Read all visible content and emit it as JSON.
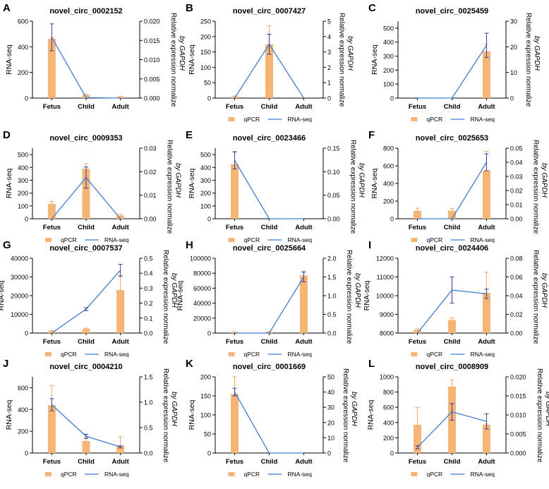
{
  "figure": {
    "colors": {
      "bar": "#F5B675",
      "bar_err": "#F0A860",
      "line": "#3F7DD6",
      "line_err": "#3B3BA8",
      "axis": "#000000"
    },
    "shared_xlabels": [
      "Fetus",
      "Child",
      "Adult"
    ],
    "shared_left_label": "RNA-seq",
    "shared_right_label": [
      "Relative expression normalize",
      "by GAPDH"
    ],
    "legend": [
      "qPCR",
      "RNA-seq"
    ]
  },
  "chart_data": [
    {
      "letter": "A",
      "title": "novel_circ_0002152",
      "type": "bar+line",
      "categories": [
        "Fetus",
        "Child",
        "Adult"
      ],
      "left_axis": {
        "label": "RNA-seq",
        "range": [
          0,
          600
        ],
        "ticks": [
          "0",
          "200",
          "400",
          "600"
        ]
      },
      "right_axis": {
        "label": "Relative expression normalize by GAPDH",
        "range": [
          0,
          0.02
        ],
        "ticks": [
          "0.000",
          "0.005",
          "0.010",
          "0.015",
          "0.020"
        ]
      },
      "series": [
        {
          "name": "qPCR",
          "kind": "bar",
          "axis": "left",
          "values": [
            462,
            25,
            10
          ],
          "errors": [
            10,
            5,
            5
          ]
        },
        {
          "name": "RNA-seq",
          "kind": "line",
          "axis": "right",
          "values": [
            0.0158,
            0.0001,
            0.0
          ],
          "errors": [
            0.0035,
            0,
            0
          ]
        }
      ],
      "legend_shown": false
    },
    {
      "letter": "B",
      "title": "novel_circ_0007427",
      "type": "bar+line",
      "categories": [
        "Fetus",
        "Child",
        "Adult"
      ],
      "left_axis": {
        "label": "RNA-seq",
        "range": [
          0,
          250
        ],
        "ticks": [
          "0",
          "50",
          "100",
          "150",
          "200",
          "250"
        ]
      },
      "right_axis": {
        "label": "Relative expression normalize by GAPDH",
        "range": [
          0,
          5
        ],
        "ticks": [
          "0",
          "1",
          "2",
          "3",
          "4",
          "5"
        ]
      },
      "series": [
        {
          "name": "qPCR",
          "kind": "bar",
          "axis": "left",
          "values": [
            5,
            175,
            0
          ],
          "errors": [
            2,
            60,
            0
          ]
        },
        {
          "name": "RNA-seq",
          "kind": "line",
          "axis": "right",
          "values": [
            0.0,
            3.5,
            0.0
          ],
          "errors": [
            0,
            0.65,
            0
          ]
        }
      ],
      "legend_shown": true
    },
    {
      "letter": "C",
      "title": "novel_circ_0025459",
      "type": "bar+line",
      "categories": [
        "Fetus",
        "Child",
        "Adult"
      ],
      "left_axis": {
        "label": "RNA-seq",
        "range": [
          0,
          550
        ],
        "ticks": [
          "0",
          "100",
          "200",
          "300",
          "400",
          "500"
        ]
      },
      "right_axis": {
        "label": "Relative expression normalize by GAPDH",
        "range": [
          0,
          30
        ],
        "ticks": [
          "0",
          "10",
          "20",
          "30"
        ]
      },
      "series": [
        {
          "name": "qPCR",
          "kind": "bar",
          "axis": "left",
          "values": [
            0,
            0,
            335
          ],
          "errors": [
            0,
            0,
            50
          ]
        },
        {
          "name": "RNA-seq",
          "kind": "line",
          "axis": "right",
          "values": [
            0.0,
            0.0,
            20.6
          ],
          "errors": [
            0,
            0,
            4.7
          ]
        }
      ],
      "legend_shown": true
    },
    {
      "letter": "D",
      "title": "novel_circ_0009353",
      "type": "bar+line",
      "categories": [
        "Fetus",
        "Child",
        "Adult"
      ],
      "left_axis": {
        "label": "RNA-seq",
        "range": [
          0,
          550
        ],
        "ticks": [
          "0",
          "100",
          "200",
          "300",
          "400",
          "500"
        ]
      },
      "right_axis": {
        "label": "Relative expression normalize by GAPDH",
        "range": [
          0,
          0.03
        ],
        "ticks": [
          "0.00",
          "0.01",
          "0.02",
          "0.03"
        ]
      },
      "series": [
        {
          "name": "qPCR",
          "kind": "bar",
          "axis": "left",
          "values": [
            115,
            390,
            25
          ],
          "errors": [
            20,
            40,
            10
          ]
        },
        {
          "name": "RNA-seq",
          "kind": "line",
          "axis": "right",
          "values": [
            0.0,
            0.0175,
            0.0
          ],
          "errors": [
            0,
            0.0045,
            0
          ]
        }
      ],
      "legend_shown": true
    },
    {
      "letter": "E",
      "title": "novel_circ_0023466",
      "type": "bar+line",
      "categories": [
        "Fetus",
        "Child",
        "Adult"
      ],
      "left_axis": {
        "label": "RNA-seq",
        "range": [
          0,
          550
        ],
        "ticks": [
          "0",
          "100",
          "200",
          "300",
          "400",
          "500"
        ]
      },
      "right_axis": {
        "label": "Relative expression normalize by GAPDH",
        "range": [
          0,
          0.15
        ],
        "ticks": [
          "0.00",
          "0.05",
          "0.10",
          "0.15"
        ]
      },
      "series": [
        {
          "name": "qPCR",
          "kind": "bar",
          "axis": "left",
          "values": [
            425,
            0,
            0
          ],
          "errors": [
            100,
            0,
            0
          ]
        },
        {
          "name": "RNA-seq",
          "kind": "line",
          "axis": "right",
          "values": [
            0.124,
            0.0,
            0.0
          ],
          "errors": [
            0.018,
            0,
            0
          ]
        }
      ],
      "legend_shown": true
    },
    {
      "letter": "F",
      "title": "novel_circ_0025653",
      "type": "bar+line",
      "categories": [
        "Fetus",
        "Child",
        "Adult"
      ],
      "left_axis": {
        "label": "RNA-seq",
        "range": [
          0,
          800
        ],
        "ticks": [
          "0",
          "200",
          "400",
          "600",
          "800"
        ]
      },
      "right_axis": {
        "label": "Relative expression normalize by GAPDH",
        "range": [
          0,
          0.05
        ],
        "ticks": [
          "0.00",
          "0.01",
          "0.02",
          "0.03",
          "0.04",
          "0.05"
        ]
      },
      "series": [
        {
          "name": "qPCR",
          "kind": "bar",
          "axis": "left",
          "values": [
            90,
            90,
            545
          ],
          "errors": [
            30,
            25,
            220
          ]
        },
        {
          "name": "RNA-seq",
          "kind": "line",
          "axis": "right",
          "values": [
            0.0,
            0.0,
            0.04
          ],
          "errors": [
            0,
            0,
            0.006
          ]
        }
      ],
      "legend_shown": true
    },
    {
      "letter": "G",
      "title": "novel_circ_0007537",
      "type": "bar+line",
      "categories": [
        "Fetus",
        "Child",
        "Adult"
      ],
      "left_axis": {
        "label": "RNA-seq",
        "range": [
          0,
          40000
        ],
        "ticks": [
          "0",
          "10000",
          "20000",
          "30000",
          "40000"
        ]
      },
      "right_axis": {
        "label": "Relative expression normalize by GAPDH",
        "range": [
          0,
          0.5
        ],
        "ticks": [
          "0.0",
          "0.1",
          "0.2",
          "0.3",
          "0.4",
          "0.5"
        ]
      },
      "series": [
        {
          "name": "qPCR",
          "kind": "bar",
          "axis": "left",
          "values": [
            1000,
            2200,
            23000
          ],
          "errors": [
            300,
            400,
            8000
          ]
        },
        {
          "name": "RNA-seq",
          "kind": "line",
          "axis": "right",
          "values": [
            0.0,
            0.16,
            0.42
          ],
          "errors": [
            0,
            0.01,
            0.04
          ]
        }
      ],
      "legend_shown": true
    },
    {
      "letter": "H",
      "title": "novel_circ_0025664",
      "type": "bar+line",
      "categories": [
        "Fetus",
        "Child",
        "Adult"
      ],
      "left_axis": {
        "label": "RNA-seq",
        "range": [
          0,
          100000
        ],
        "ticks": [
          "0",
          "20000",
          "40000",
          "60000",
          "80000",
          "100000"
        ]
      },
      "right_axis": {
        "label": "Relative expression normalize by GAPDH",
        "range": [
          0,
          2
        ],
        "ticks": [
          "0.0",
          "0.5",
          "1.0",
          "1.5",
          "2.0"
        ]
      },
      "series": [
        {
          "name": "qPCR",
          "kind": "bar",
          "axis": "left",
          "values": [
            1200,
            1500,
            77000
          ],
          "errors": [
            300,
            400,
            6000
          ]
        },
        {
          "name": "RNA-seq",
          "kind": "line",
          "axis": "right",
          "values": [
            0.0,
            0.0,
            1.5
          ],
          "errors": [
            0,
            0,
            0.13
          ]
        }
      ],
      "legend_shown": true
    },
    {
      "letter": "I",
      "title": "novel_circ_0024406",
      "type": "bar+line",
      "categories": [
        "Fetus",
        "Child",
        "Adult"
      ],
      "left_axis": {
        "label": "RNA-seq",
        "range": [
          8000,
          12000
        ],
        "ticks": [
          "8000",
          "9000",
          "10000",
          "11000",
          "12000"
        ]
      },
      "right_axis": {
        "label": "Relative expression normalize by GAPDH",
        "range": [
          0,
          0.08
        ],
        "ticks": [
          "0.00",
          "0.02",
          "0.04",
          "0.06",
          "0.08"
        ]
      },
      "series": [
        {
          "name": "qPCR",
          "kind": "bar",
          "axis": "left",
          "values": [
            8180,
            8700,
            10150
          ],
          "errors": [
            50,
            120,
            1100
          ]
        },
        {
          "name": "RNA-seq",
          "kind": "line",
          "axis": "right",
          "values": [
            0.0,
            0.046,
            0.042
          ],
          "errors": [
            0,
            0.014,
            0.005
          ]
        }
      ],
      "legend_shown": true
    },
    {
      "letter": "J",
      "title": "novel_circ_0004210",
      "type": "bar+line",
      "categories": [
        "Fetus",
        "Child",
        "Adult"
      ],
      "left_axis": {
        "label": "RNA-seq",
        "range": [
          0,
          700
        ],
        "ticks": [
          "0",
          "200",
          "400",
          "600"
        ]
      },
      "right_axis": {
        "label": "Relative expression normalize by GAPDH",
        "range": [
          0,
          1.5
        ],
        "ticks": [
          "0.0",
          "0.5",
          "1.0",
          "1.5"
        ]
      },
      "series": [
        {
          "name": "qPCR",
          "kind": "bar",
          "axis": "left",
          "values": [
            440,
            110,
            70
          ],
          "errors": [
            180,
            30,
            80
          ]
        },
        {
          "name": "RNA-seq",
          "kind": "line",
          "axis": "right",
          "values": [
            0.95,
            0.33,
            0.12
          ],
          "errors": [
            0.12,
            0.04,
            0.02
          ]
        }
      ],
      "legend_shown": true
    },
    {
      "letter": "K",
      "title": "novel_circ_0001669",
      "type": "bar+line",
      "categories": [
        "Fetus",
        "Child",
        "Adult"
      ],
      "left_axis": {
        "label": "RNA-seq",
        "range": [
          0,
          200
        ],
        "ticks": [
          "0",
          "50",
          "100",
          "150",
          "200"
        ]
      },
      "right_axis": {
        "label": "Relative expression normalize by GAPDH",
        "range": [
          0,
          50
        ],
        "ticks": [
          "0",
          "10",
          "20",
          "30",
          "40",
          "50"
        ]
      },
      "series": [
        {
          "name": "qPCR",
          "kind": "bar",
          "axis": "left",
          "values": [
            155,
            0,
            0
          ],
          "errors": [
            45,
            0,
            0
          ]
        },
        {
          "name": "RNA-seq",
          "kind": "line",
          "axis": "right",
          "values": [
            40,
            0,
            0
          ],
          "errors": [
            2.5,
            0,
            0
          ]
        }
      ],
      "legend_shown": true
    },
    {
      "letter": "L",
      "title": "novel_circ_0008909",
      "type": "bar+line",
      "categories": [
        "Fetus",
        "Child",
        "Adult"
      ],
      "left_axis": {
        "label": "RNA-seq",
        "range": [
          0,
          1000
        ],
        "ticks": [
          "0",
          "200",
          "400",
          "600",
          "800",
          "1000"
        ]
      },
      "right_axis": {
        "label": "Relative expression normalize by GAPDH",
        "range": [
          0,
          0.02
        ],
        "ticks": [
          "0.000",
          "0.005",
          "0.010",
          "0.015",
          "0.020"
        ]
      },
      "series": [
        {
          "name": "qPCR",
          "kind": "bar",
          "axis": "left",
          "values": [
            370,
            870,
            370
          ],
          "errors": [
            230,
            90,
            10
          ]
        },
        {
          "name": "RNA-seq",
          "kind": "line",
          "axis": "right",
          "values": [
            0.0015,
            0.0108,
            0.0083
          ],
          "errors": [
            0.0004,
            0.0022,
            0.002
          ]
        }
      ],
      "legend_shown": true
    }
  ]
}
